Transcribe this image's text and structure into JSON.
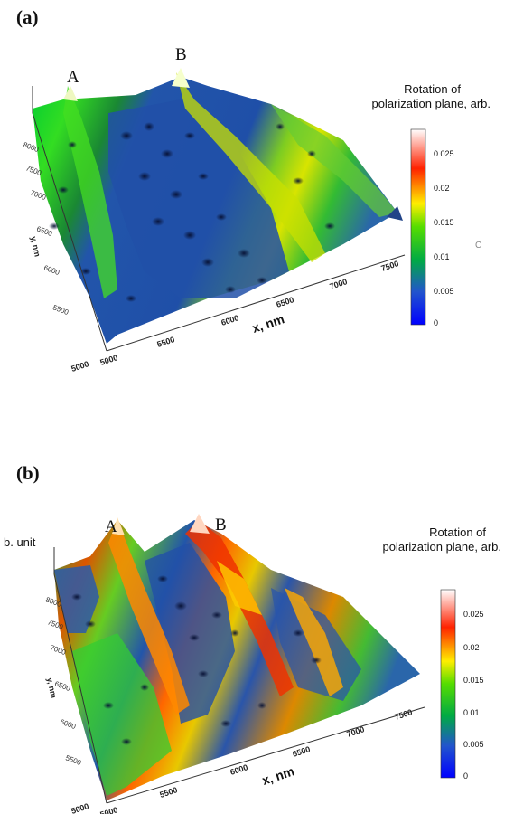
{
  "chart_data": [
    {
      "type": "surface3d",
      "panel_label": "(a)",
      "peak_labels": [
        "A",
        "B"
      ],
      "xlabel": "x, nm",
      "ylabel": "y, nm",
      "colorbar_title_line1": "Rotation of",
      "colorbar_title_line2": "polarization plane, arb.",
      "colorbar_ticks": [
        "0.025",
        "0.02",
        "0.015",
        "0.01",
        "0.005",
        "0"
      ],
      "colorbar_range": [
        0,
        0.03
      ],
      "x_ticks": [
        "5000",
        "5500",
        "6000",
        "6500",
        "7000",
        "7500"
      ],
      "y_ticks": [
        "5000",
        "5500",
        "6000",
        "6500",
        "7000",
        "7500",
        "8000"
      ],
      "xlim": [
        5000,
        7500
      ],
      "ylim": [
        5000,
        8000
      ],
      "colormap": [
        "#0000ff",
        "#2266cc",
        "#00cc33",
        "#ffee00",
        "#ff0000",
        "#ffffff"
      ],
      "top_left_faint": "",
      "right_faint": "C"
    },
    {
      "type": "surface3d",
      "panel_label": "(b)",
      "peak_labels": [
        "A",
        "B"
      ],
      "xlabel": "x, nm",
      "ylabel": "y, nm",
      "zlabel_fragment": "b. unit",
      "colorbar_title_line1": "Rotation of",
      "colorbar_title_line2": "polarization plane, arb.",
      "colorbar_ticks": [
        "0.025",
        "0.02",
        "0.015",
        "0.01",
        "0.005",
        "0"
      ],
      "colorbar_range": [
        0,
        0.03
      ],
      "x_ticks": [
        "5000",
        "5500",
        "6000",
        "6500",
        "7000",
        "7500"
      ],
      "y_ticks": [
        "5000",
        "5500",
        "6000",
        "6500",
        "7000",
        "7500",
        "8000"
      ],
      "xlim": [
        5000,
        7500
      ],
      "ylim": [
        5000,
        8000
      ],
      "colormap": [
        "#0000ff",
        "#2266cc",
        "#00cc33",
        "#ffee00",
        "#ff0000",
        "#ffffff"
      ]
    }
  ]
}
